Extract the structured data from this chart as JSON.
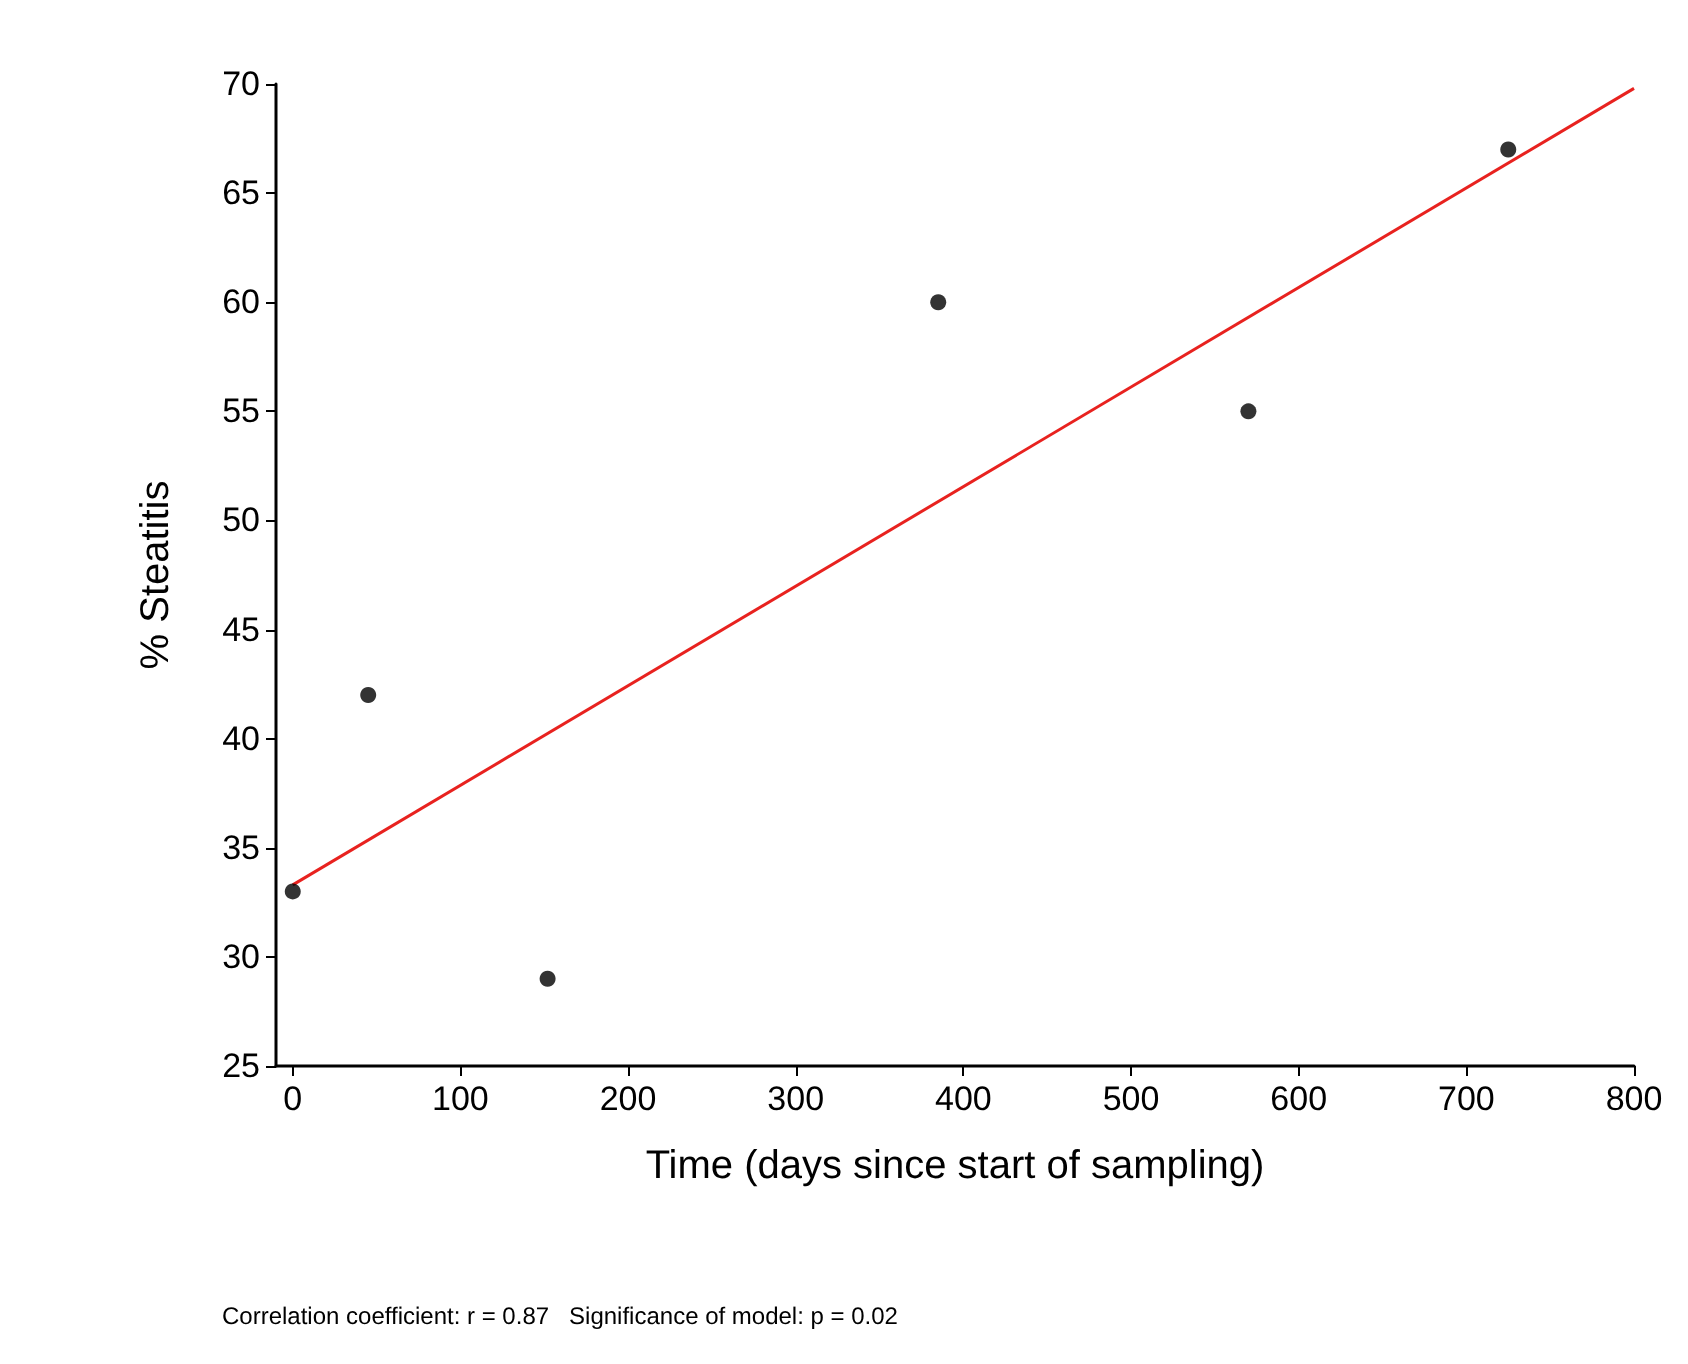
{
  "chart_data": {
    "type": "scatter",
    "xlabel": "Time (days since start of sampling)",
    "ylabel": "% Steatitis",
    "series": [
      {
        "type": "scatter",
        "color": "#000000",
        "x": [
          0,
          45,
          152,
          385,
          570,
          725
        ],
        "values": [
          33,
          42,
          29,
          60,
          55,
          67
        ],
        "marker": "circle"
      },
      {
        "type": "line",
        "color": "#e8221f",
        "x": [
          0,
          800
        ],
        "values": [
          33.3,
          69.8
        ],
        "marker": "none",
        "line_style": "solid"
      }
    ],
    "xlim": [
      -10,
      800
    ],
    "xticks": [
      0,
      100,
      200,
      300,
      400,
      500,
      600,
      700,
      800
    ],
    "ylim": [
      25,
      70
    ],
    "yticks": [
      25,
      30,
      35,
      40,
      45,
      50,
      55,
      60,
      65,
      70
    ],
    "grid": false,
    "annotations": [
      "Correlation coefficient: r = 0.87   Significance of model: p = 0.02"
    ]
  }
}
